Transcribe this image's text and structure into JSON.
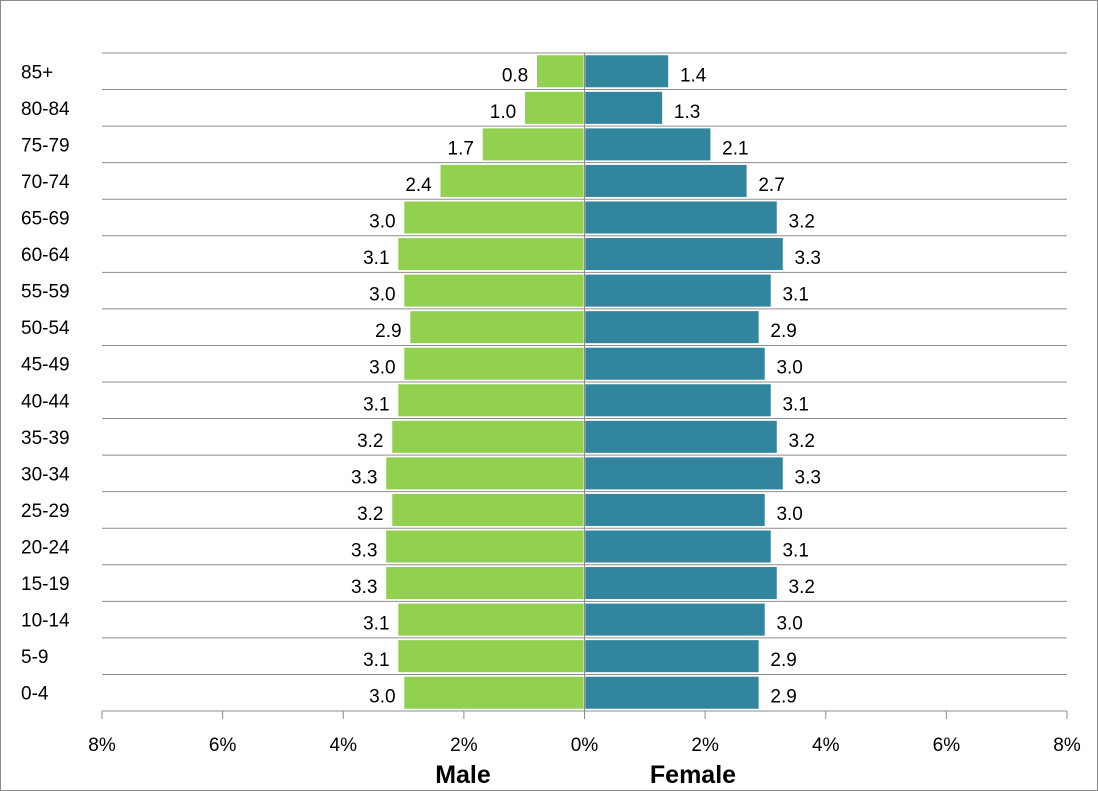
{
  "chart_data": {
    "type": "bar",
    "orientation": "horizontal",
    "layout": "population-pyramid",
    "categories": [
      "0-4",
      "5-9",
      "10-14",
      "15-19",
      "20-24",
      "25-29",
      "30-34",
      "35-39",
      "40-44",
      "45-49",
      "50-54",
      "55-59",
      "60-64",
      "65-69",
      "70-74",
      "75-79",
      "80-84",
      "85+"
    ],
    "series": [
      {
        "name": "Male",
        "side": "left",
        "color": "#92d050",
        "values": [
          3.0,
          3.1,
          3.1,
          3.3,
          3.3,
          3.2,
          3.3,
          3.2,
          3.1,
          3.0,
          2.9,
          3.0,
          3.1,
          3.0,
          2.4,
          1.7,
          1.0,
          0.8
        ],
        "labels": [
          "3.0",
          "3.1",
          "3.1",
          "3.3",
          "3.3",
          "3.2",
          "3.3",
          "3.2",
          "3.1",
          "3.0",
          "2.9",
          "3.0",
          "3.1",
          "3.0",
          "2.4",
          "1.7",
          "1.0",
          "0.8"
        ]
      },
      {
        "name": "Female",
        "side": "right",
        "color": "#31859c",
        "values": [
          2.9,
          2.9,
          3.0,
          3.2,
          3.1,
          3.0,
          3.3,
          3.2,
          3.1,
          3.0,
          2.9,
          3.1,
          3.3,
          3.2,
          2.7,
          2.1,
          1.3,
          1.4
        ],
        "labels": [
          "2.9",
          "2.9",
          "3.0",
          "3.2",
          "3.1",
          "3.0",
          "3.3",
          "3.2",
          "3.1",
          "3.0",
          "2.9",
          "3.1",
          "3.3",
          "3.2",
          "2.7",
          "2.1",
          "1.3",
          "1.4"
        ]
      }
    ],
    "xlim": [
      -8,
      8
    ],
    "x_ticks": [
      -8,
      -6,
      -4,
      -2,
      0,
      2,
      4,
      6,
      8
    ],
    "x_tick_labels": [
      "8%",
      "6%",
      "4%",
      "2%",
      "0%",
      "2%",
      "4%",
      "6%",
      "8%"
    ],
    "axis_titles": {
      "left": "Male",
      "right": "Female"
    },
    "grid": "horizontal",
    "legend": "none"
  }
}
